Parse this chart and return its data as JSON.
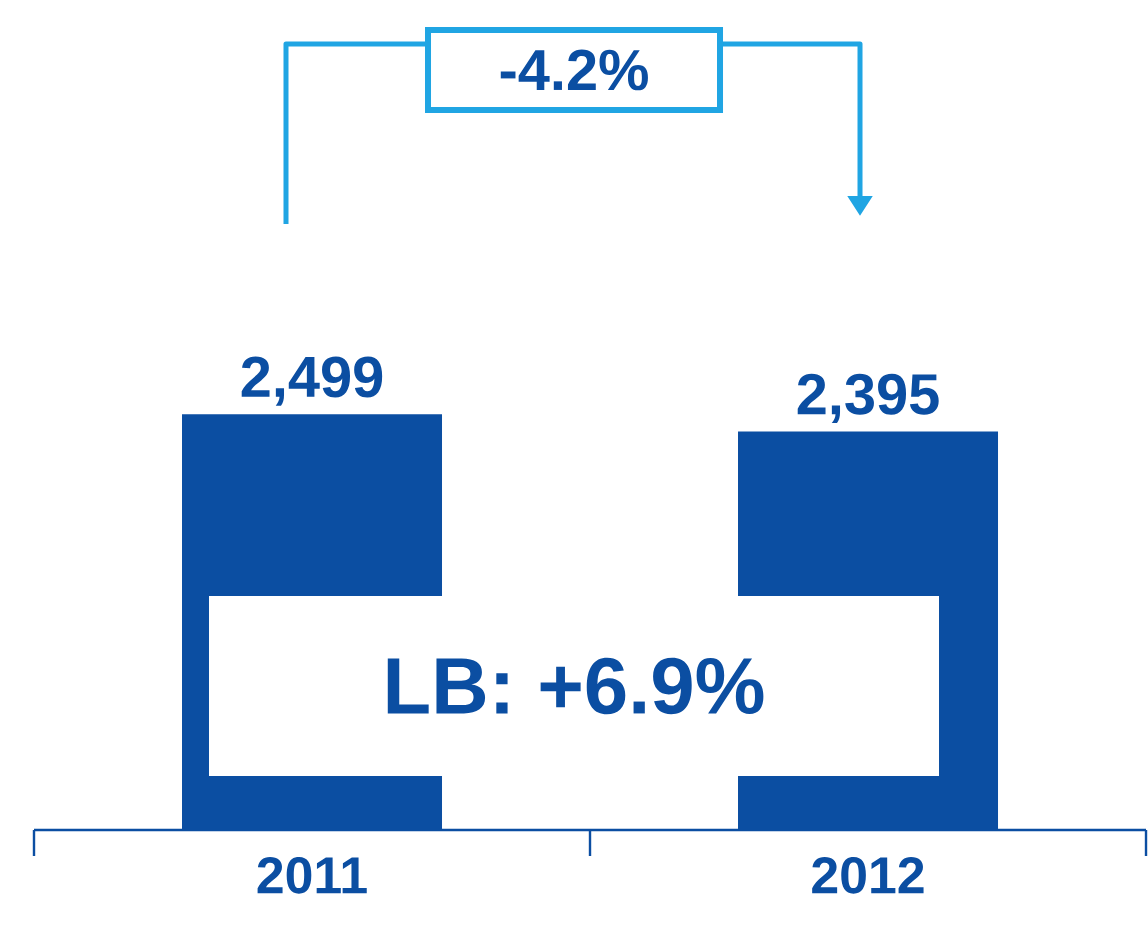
{
  "chart_data": {
    "type": "bar",
    "categories": [
      "2011",
      "2012"
    ],
    "values": [
      2499,
      2395
    ],
    "color": "#0b4ea2",
    "value_labels": [
      "2,499",
      "2,395"
    ],
    "annotations": [
      "-4.2%",
      "LB: +6.9%"
    ]
  }
}
